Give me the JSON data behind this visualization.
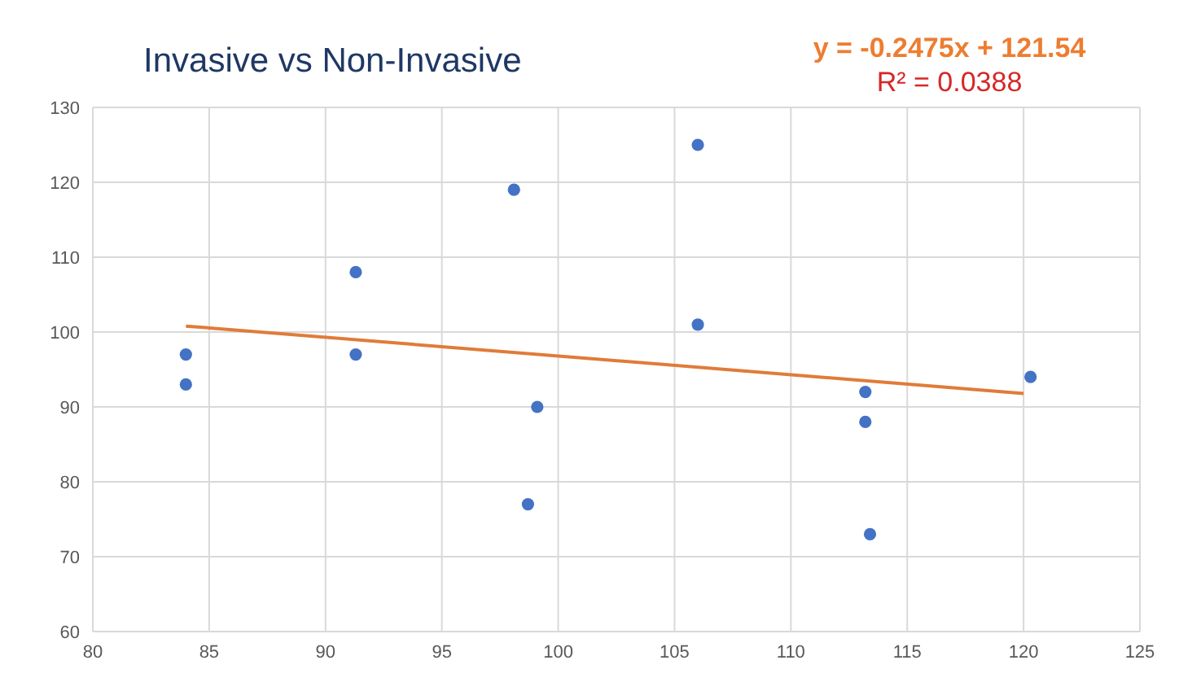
{
  "chart_data": {
    "type": "scatter",
    "title": "Invasive vs Non-Invasive",
    "annotations": [
      "y = -0.2475x + 121.54",
      "R² = 0.0388"
    ],
    "series": [
      {
        "color": "#4472c4",
        "x": [
          84,
          84,
          91.3,
          91.3,
          98.1,
          106,
          106,
          99.1,
          98.7,
          113.2,
          113.2,
          113.4,
          120.3
        ],
        "values": [
          97,
          93,
          97,
          108,
          119,
          125,
          101,
          90,
          77,
          92,
          88,
          73,
          94
        ]
      },
      {
        "type": "line",
        "color": "#e07b39",
        "marker": "none",
        "x": [
          84,
          120
        ],
        "values": [
          100.8,
          91.8
        ]
      }
    ],
    "xlim": [
      80,
      125
    ],
    "xticks": [
      80,
      85,
      90,
      95,
      100,
      105,
      110,
      115,
      120,
      125
    ],
    "ylim": [
      60,
      130
    ],
    "yticks": [
      60,
      70,
      80,
      90,
      100,
      110,
      120,
      130
    ],
    "grid": true,
    "marker": "circle"
  }
}
